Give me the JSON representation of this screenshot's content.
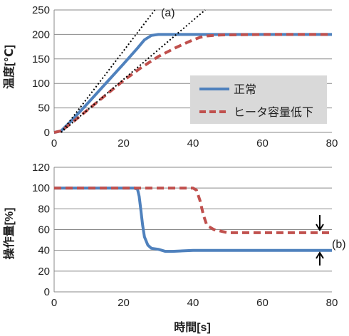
{
  "colors": {
    "normal": "#4f81bd",
    "reduced": "#c0504d",
    "grid": "#8a8a8a",
    "tangent": "#000000",
    "legend_bg": "#d9d9d9"
  },
  "chart_data": [
    {
      "type": "line",
      "panel": "top",
      "xlabel": "",
      "ylabel": "温度[℃]",
      "xlim": [
        0,
        80
      ],
      "ylim": [
        0,
        250
      ],
      "xticks": [
        0,
        20,
        40,
        60,
        80
      ],
      "yticks": [
        0,
        50,
        100,
        150,
        200,
        250
      ],
      "grid": true,
      "legend_position": "inside-right",
      "annotation": "(a)",
      "series": [
        {
          "name": "正常",
          "style": "solid",
          "color": "#4f81bd",
          "x": [
            0,
            2,
            5,
            10,
            15,
            20,
            24,
            26,
            28,
            30,
            35,
            40,
            60,
            80
          ],
          "y": [
            0,
            3,
            24,
            62,
            101,
            140,
            172,
            189,
            198,
            200,
            200,
            200,
            200,
            200
          ]
        },
        {
          "name": "ヒータ容量低下",
          "style": "dashed",
          "color": "#c0504d",
          "x": [
            0,
            2,
            5,
            10,
            15,
            20,
            25,
            30,
            35,
            40,
            42,
            44,
            48,
            60,
            80
          ],
          "y": [
            0,
            3,
            19,
            48,
            77,
            106,
            132,
            155,
            173,
            189,
            194,
            197,
            199,
            200,
            200
          ]
        },
        {
          "name": "",
          "style": "dotted",
          "color": "#000000",
          "x": [
            2,
            29
          ],
          "y": [
            0,
            250
          ]
        },
        {
          "name": "",
          "style": "dotted",
          "color": "#000000",
          "x": [
            2,
            43.5
          ],
          "y": [
            0,
            250
          ]
        }
      ]
    },
    {
      "type": "line",
      "panel": "bottom",
      "xlabel": "時間[s]",
      "ylabel": "操作量[%]",
      "xlim": [
        0,
        80
      ],
      "ylim": [
        0,
        120
      ],
      "xticks": [
        0,
        20,
        40,
        60,
        80
      ],
      "yticks": [
        0,
        20,
        40,
        60,
        80,
        100,
        120
      ],
      "grid": true,
      "annotation": "(b)",
      "series": [
        {
          "name": "正常",
          "style": "solid",
          "color": "#4f81bd",
          "x": [
            0,
            23,
            24,
            24.5,
            25,
            25.5,
            26,
            27,
            28,
            30,
            32,
            34,
            40,
            80
          ],
          "y": [
            100,
            100,
            99,
            92,
            78,
            64,
            53,
            45,
            42,
            41,
            39,
            39,
            40,
            40
          ]
        },
        {
          "name": "ヒータ容量低下",
          "style": "dashed",
          "color": "#c0504d",
          "x": [
            0,
            40,
            41,
            42,
            43,
            44,
            46,
            50,
            60,
            80
          ],
          "y": [
            100,
            100,
            98,
            88,
            74,
            64,
            60,
            57,
            57,
            57
          ]
        }
      ]
    }
  ]
}
